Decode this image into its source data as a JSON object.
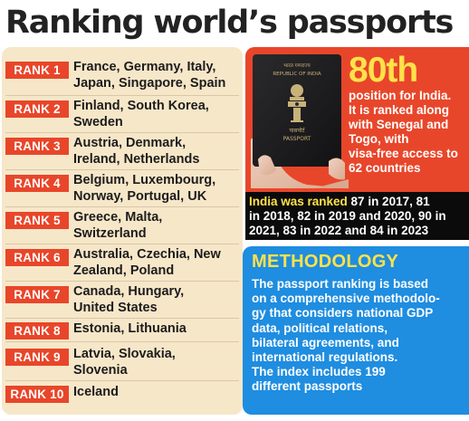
{
  "title": "Ranking world’s passports",
  "rankings": [
    {
      "rank": "RANK 1",
      "countries": "France, Germany, Italy,\nJapan, Singapore, Spain"
    },
    {
      "rank": "RANK 2",
      "countries": "Finland, South Korea,\nSweden"
    },
    {
      "rank": "RANK 3",
      "countries": "Austria, Denmark,\nIreland, Netherlands"
    },
    {
      "rank": "RANK 4",
      "countries": "Belgium, Luxembourg,\nNorway, Portugal, UK"
    },
    {
      "rank": "RANK 5",
      "countries": "Greece, Malta,\nSwitzerland"
    },
    {
      "rank": "RANK 6",
      "countries": "Australia, Czechia, New\nZealand, Poland"
    },
    {
      "rank": "RANK 7",
      "countries": "Canada, Hungary,\nUnited States"
    },
    {
      "rank": "RANK 8",
      "countries": "Estonia, Lithuania"
    },
    {
      "rank": "RANK 9",
      "countries": "Latvia, Slovakia,\nSlovenia"
    },
    {
      "rank": "RANK 10",
      "countries": "Iceland"
    }
  ],
  "india": {
    "position": "80th",
    "description": "position for India.\nIt is ranked along\nwith Senegal and\nTogo, with\nvisa-free access to\n62 countries",
    "ranked_label": "India was ranked",
    "ranked_history": " 87 in 2017, 81\nin 2018, 82 in 2019 and 2020, 90 in\n2021, 83 in 2022 and 84 in 2023",
    "passport": {
      "hindi_title": "भारत गणराज्य",
      "republic": "REPUBLIC OF INDIA",
      "hindi_passport": "पासपोर्ट",
      "passport_label": "PASSPORT"
    }
  },
  "methodology": {
    "title": "METHODOLOGY",
    "body": "The passport ranking is based\non a comprehensive methodolo-\ngy that considers national GDP\ndata, political relations,\nbilateral agreements, and\ninternational regulations.\nThe index includes 199\ndifferent passports"
  },
  "colors": {
    "accent_red": "#e8462a",
    "panel_cream": "#f7e7c9",
    "method_blue": "#1f8de0",
    "highlight_yellow": "#ffe24a"
  }
}
